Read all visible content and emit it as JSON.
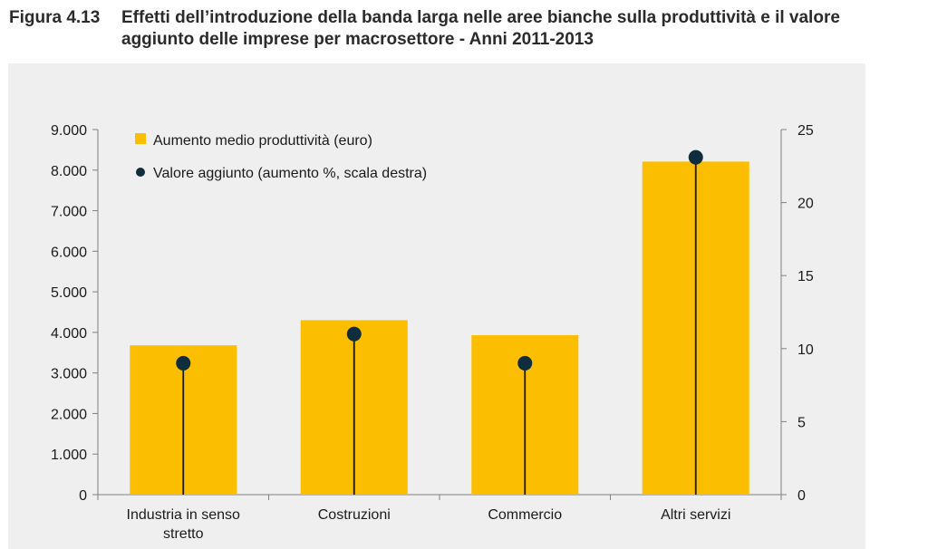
{
  "figure": {
    "label": "Figura 4.13",
    "title_line1": "Effetti dell’introduzione della banda larga nelle aree bianche sulla produttività e il valore",
    "title_line2": "aggiunto delle imprese per macrosettore - Anni 2011-2013"
  },
  "chart_data": {
    "type": "bar",
    "categories": [
      "Industria in senso\nstretto",
      "Costruzioni",
      "Commercio",
      "Altri servizi"
    ],
    "series": [
      {
        "name": "Aumento medio produttività  (euro)",
        "type": "bar",
        "axis": "left",
        "values": [
          3680,
          4300,
          3930,
          8210
        ]
      },
      {
        "name": "Valore aggiunto (aumento %, scala destra)",
        "type": "lollipop",
        "axis": "right",
        "values": [
          9.0,
          11.0,
          9.0,
          23.1
        ]
      }
    ],
    "y_left": {
      "ylim": [
        0,
        9000
      ],
      "ticks": [
        0,
        1000,
        2000,
        3000,
        4000,
        5000,
        6000,
        7000,
        8000,
        9000
      ],
      "tick_labels": [
        "0",
        "1.000",
        "2.000",
        "3.000",
        "4.000",
        "5.000",
        "6.000",
        "7.000",
        "8.000",
        "9.000"
      ]
    },
    "y_right": {
      "ylim": [
        0,
        25
      ],
      "ticks": [
        0,
        5,
        10,
        15,
        20,
        25
      ],
      "tick_labels": [
        "0",
        "5",
        "10",
        "15",
        "20",
        "25"
      ]
    },
    "legend_position": "top-left",
    "grid": false,
    "colors": {
      "bar": "#fbbe00",
      "dot": "#0f2d3c",
      "stem": "#1a1a1a",
      "background": "#efefef"
    }
  }
}
